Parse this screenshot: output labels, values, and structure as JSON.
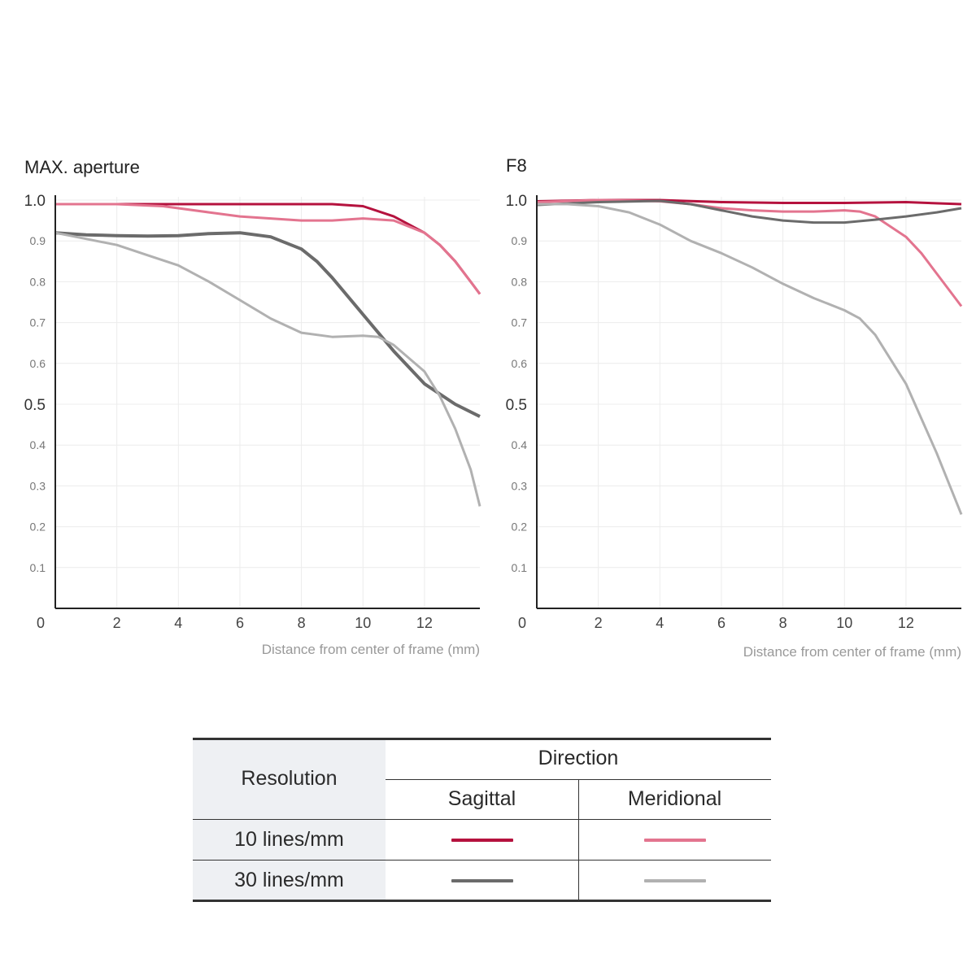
{
  "chart_data": [
    {
      "type": "line",
      "title": "MAX. aperture",
      "xlabel": "Distance from center of frame (mm)",
      "ylabel": "",
      "xlim": [
        0,
        13.8
      ],
      "ylim": [
        0,
        1.0
      ],
      "x_ticks": [
        "0",
        "2",
        "4",
        "6",
        "8",
        "10",
        "12"
      ],
      "x_tick_values": [
        0,
        2,
        4,
        6,
        8,
        10,
        12
      ],
      "y_ticks": [
        "1.0",
        "0.9",
        "0.8",
        "0.7",
        "0.6",
        "0.5",
        "0.4",
        "0.3",
        "0.2",
        "0.1"
      ],
      "y_tick_values": [
        1.0,
        0.9,
        0.8,
        0.7,
        0.6,
        0.5,
        0.4,
        0.3,
        0.2,
        0.1
      ],
      "grid": true,
      "series": [
        {
          "color": "#b5123e",
          "width": 3,
          "x": [
            0,
            2,
            4,
            6,
            8,
            9,
            10,
            11,
            12,
            12.5,
            13,
            13.5,
            13.8
          ],
          "y": [
            0.99,
            0.99,
            0.99,
            0.99,
            0.99,
            0.99,
            0.985,
            0.96,
            0.92,
            0.89,
            0.85,
            0.8,
            0.77
          ]
        },
        {
          "color": "#e3748f",
          "width": 3,
          "x": [
            0,
            2,
            3.5,
            4,
            5,
            6,
            7,
            8,
            9,
            10,
            11,
            12,
            12.5,
            13,
            13.5,
            13.8
          ],
          "y": [
            0.99,
            0.99,
            0.985,
            0.98,
            0.97,
            0.96,
            0.955,
            0.95,
            0.95,
            0.955,
            0.95,
            0.92,
            0.89,
            0.85,
            0.8,
            0.77
          ]
        },
        {
          "color": "#6b6b6b",
          "width": 4,
          "x": [
            0,
            1,
            2,
            3,
            4,
            5,
            6,
            7,
            8,
            8.5,
            9,
            10,
            11,
            12,
            13,
            13.8
          ],
          "y": [
            0.92,
            0.915,
            0.913,
            0.912,
            0.913,
            0.918,
            0.92,
            0.91,
            0.88,
            0.85,
            0.81,
            0.72,
            0.63,
            0.55,
            0.5,
            0.47
          ]
        },
        {
          "color": "#b1b1b1",
          "width": 3,
          "x": [
            0,
            1,
            2,
            3,
            4,
            5,
            6,
            7,
            8,
            9,
            10,
            10.5,
            11,
            12,
            12.5,
            13,
            13.5,
            13.8
          ],
          "y": [
            0.92,
            0.905,
            0.89,
            0.865,
            0.84,
            0.8,
            0.755,
            0.71,
            0.675,
            0.665,
            0.668,
            0.665,
            0.645,
            0.58,
            0.52,
            0.44,
            0.34,
            0.25
          ]
        }
      ]
    },
    {
      "type": "line",
      "title": "F8",
      "xlabel": "Distance from center of frame (mm)",
      "ylabel": "",
      "xlim": [
        0,
        13.8
      ],
      "ylim": [
        0,
        1.0
      ],
      "x_ticks": [
        "0",
        "2",
        "4",
        "6",
        "8",
        "10",
        "12"
      ],
      "x_tick_values": [
        0,
        2,
        4,
        6,
        8,
        10,
        12
      ],
      "y_ticks": [
        "1.0",
        "0.9",
        "0.8",
        "0.7",
        "0.6",
        "0.5",
        "0.4",
        "0.3",
        "0.2",
        "0.1"
      ],
      "y_tick_values": [
        1.0,
        0.9,
        0.8,
        0.7,
        0.6,
        0.5,
        0.4,
        0.3,
        0.2,
        0.1
      ],
      "grid": true,
      "series": [
        {
          "color": "#b5123e",
          "width": 3,
          "x": [
            0,
            2,
            4,
            6,
            8,
            10,
            12,
            13.8
          ],
          "y": [
            0.997,
            1.0,
            1.0,
            0.995,
            0.993,
            0.993,
            0.995,
            0.99
          ]
        },
        {
          "color": "#e3748f",
          "width": 3,
          "x": [
            0,
            2,
            4,
            5,
            6,
            7,
            8,
            9,
            10,
            10.5,
            11,
            12,
            12.5,
            13,
            13.5,
            13.8
          ],
          "y": [
            0.995,
            1.0,
            0.997,
            0.99,
            0.98,
            0.975,
            0.972,
            0.972,
            0.975,
            0.972,
            0.96,
            0.91,
            0.87,
            0.82,
            0.77,
            0.74
          ]
        },
        {
          "color": "#6b6b6b",
          "width": 3,
          "x": [
            0,
            2,
            4,
            5,
            6,
            7,
            8,
            9,
            10,
            11,
            12,
            13,
            13.8
          ],
          "y": [
            0.988,
            0.995,
            0.998,
            0.99,
            0.975,
            0.96,
            0.95,
            0.945,
            0.945,
            0.952,
            0.96,
            0.97,
            0.98
          ]
        },
        {
          "color": "#b1b1b1",
          "width": 3,
          "x": [
            0,
            1,
            2,
            3,
            4,
            5,
            6,
            7,
            8,
            9,
            10,
            10.5,
            11,
            12,
            13,
            13.8
          ],
          "y": [
            0.99,
            0.99,
            0.985,
            0.97,
            0.94,
            0.9,
            0.87,
            0.835,
            0.795,
            0.76,
            0.73,
            0.71,
            0.67,
            0.55,
            0.38,
            0.23
          ]
        }
      ]
    }
  ],
  "legend_table": {
    "resolution_header": "Resolution",
    "direction_header": "Direction",
    "sagittal_label": "Sagittal",
    "meridional_label": "Meridional",
    "rows": [
      {
        "label": "10 lines/mm",
        "sagittal_color": "#b5123e",
        "meridional_color": "#e3748f"
      },
      {
        "label": "30 lines/mm",
        "sagittal_color": "#6b6b6b",
        "meridional_color": "#b1b1b1"
      }
    ]
  }
}
